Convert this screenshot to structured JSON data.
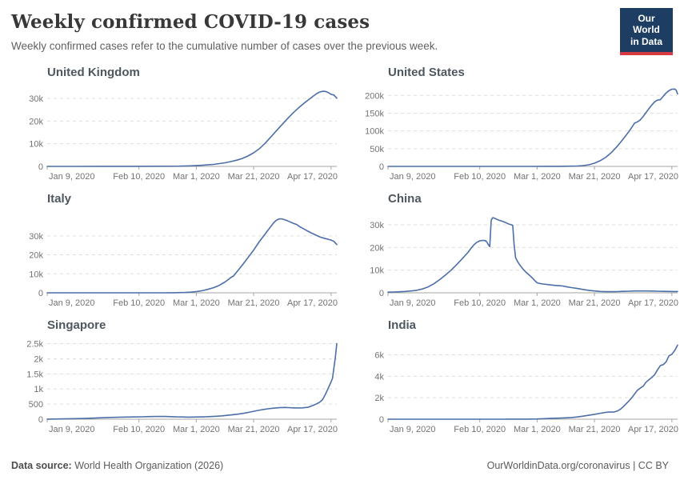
{
  "header": {
    "title": "Weekly confirmed COVID-19 cases",
    "subtitle": "Weekly confirmed cases refer to the cumulative number of cases over the previous week.",
    "logo": {
      "line1": "Our World",
      "line2": "in Data"
    }
  },
  "footer": {
    "source_label": "Data source:",
    "source_text": " World Health Organization (2026)",
    "credit": "OurWorldinData.org/coronavirus | CC BY"
  },
  "colors": {
    "line": "#4c6ea9",
    "grid": "#dddddd",
    "axis": "#a5a5a5",
    "tick_text": "#737373",
    "logo_navy": "#1d3d63",
    "logo_red": "#d7373f"
  },
  "chart_data": [
    {
      "type": "line",
      "title": "United Kingdom",
      "x_domain": [
        0,
        101
      ],
      "x_ticks": [
        {
          "day": 0,
          "label": "Jan 9, 2020"
        },
        {
          "day": 32,
          "label": "Feb 10, 2020"
        },
        {
          "day": 52,
          "label": "Mar 1, 2020"
        },
        {
          "day": 72,
          "label": "Mar 21, 2020"
        },
        {
          "day": 99,
          "label": "Apr 17, 2020"
        }
      ],
      "y_max": 36000,
      "y_ticks": [
        {
          "v": 0,
          "label": "0"
        },
        {
          "v": 10000,
          "label": "10k"
        },
        {
          "v": 20000,
          "label": "20k"
        },
        {
          "v": 30000,
          "label": "30k"
        }
      ],
      "points": [
        [
          0,
          10
        ],
        [
          10,
          15
        ],
        [
          20,
          20
        ],
        [
          30,
          30
        ],
        [
          40,
          60
        ],
        [
          46,
          120
        ],
        [
          50,
          250
        ],
        [
          54,
          500
        ],
        [
          58,
          900
        ],
        [
          62,
          1600
        ],
        [
          64,
          2100
        ],
        [
          66,
          2700
        ],
        [
          68,
          3500
        ],
        [
          70,
          4600
        ],
        [
          72,
          6000
        ],
        [
          74,
          7800
        ],
        [
          76,
          10200
        ],
        [
          78,
          13000
        ],
        [
          80,
          15800
        ],
        [
          82,
          18600
        ],
        [
          84,
          21300
        ],
        [
          86,
          23900
        ],
        [
          88,
          26200
        ],
        [
          90,
          28300
        ],
        [
          92,
          30200
        ],
        [
          93,
          31200
        ],
        [
          94,
          32100
        ],
        [
          95,
          32800
        ],
        [
          96,
          33100
        ],
        [
          97,
          33100
        ],
        [
          98,
          32600
        ],
        [
          99,
          31800
        ],
        [
          100,
          31500
        ],
        [
          101,
          30100
        ]
      ]
    },
    {
      "type": "line",
      "title": "United States",
      "x_domain": [
        0,
        101
      ],
      "x_ticks": [
        {
          "day": 0,
          "label": "Jan 9, 2020"
        },
        {
          "day": 32,
          "label": "Feb 10, 2020"
        },
        {
          "day": 52,
          "label": "Mar 1, 2020"
        },
        {
          "day": 72,
          "label": "Mar 21, 2020"
        },
        {
          "day": 99,
          "label": "Apr 17, 2020"
        }
      ],
      "y_max": 230000,
      "y_ticks": [
        {
          "v": 0,
          "label": "0"
        },
        {
          "v": 50000,
          "label": "50k"
        },
        {
          "v": 100000,
          "label": "100k"
        },
        {
          "v": 150000,
          "label": "150k"
        },
        {
          "v": 200000,
          "label": "200k"
        }
      ],
      "points": [
        [
          0,
          5
        ],
        [
          20,
          10
        ],
        [
          40,
          30
        ],
        [
          50,
          60
        ],
        [
          56,
          120
        ],
        [
          60,
          250
        ],
        [
          64,
          600
        ],
        [
          66,
          1100
        ],
        [
          68,
          2200
        ],
        [
          70,
          4500
        ],
        [
          72,
          9000
        ],
        [
          74,
          16000
        ],
        [
          76,
          26000
        ],
        [
          78,
          40000
        ],
        [
          80,
          57000
        ],
        [
          82,
          77000
        ],
        [
          84,
          98000
        ],
        [
          85,
          110000
        ],
        [
          86,
          122000
        ],
        [
          87,
          125500
        ],
        [
          88,
          131000
        ],
        [
          89,
          141000
        ],
        [
          90,
          152000
        ],
        [
          91,
          163000
        ],
        [
          92,
          173000
        ],
        [
          93,
          182000
        ],
        [
          94,
          187000
        ],
        [
          95,
          188000
        ],
        [
          96,
          198000
        ],
        [
          97,
          207000
        ],
        [
          98,
          213500
        ],
        [
          99,
          217500
        ],
        [
          100,
          218000
        ],
        [
          100.5,
          215000
        ],
        [
          101,
          204000
        ]
      ]
    },
    {
      "type": "line",
      "title": "Italy",
      "x_domain": [
        0,
        101
      ],
      "x_ticks": [
        {
          "day": 0,
          "label": "Jan 9, 2020"
        },
        {
          "day": 32,
          "label": "Feb 10, 2020"
        },
        {
          "day": 52,
          "label": "Mar 1, 2020"
        },
        {
          "day": 72,
          "label": "Mar 21, 2020"
        },
        {
          "day": 99,
          "label": "Apr 17, 2020"
        }
      ],
      "y_max": 43000,
      "y_ticks": [
        {
          "v": 0,
          "label": "0"
        },
        {
          "v": 10000,
          "label": "10k"
        },
        {
          "v": 20000,
          "label": "20k"
        },
        {
          "v": 30000,
          "label": "30k"
        }
      ],
      "points": [
        [
          0,
          0
        ],
        [
          20,
          3
        ],
        [
          30,
          5
        ],
        [
          40,
          20
        ],
        [
          44,
          60
        ],
        [
          48,
          180
        ],
        [
          50,
          350
        ],
        [
          52,
          650
        ],
        [
          54,
          1100
        ],
        [
          56,
          1800
        ],
        [
          58,
          2700
        ],
        [
          60,
          3900
        ],
        [
          62,
          5700
        ],
        [
          63,
          6800
        ],
        [
          64,
          8000
        ],
        [
          65,
          8900
        ],
        [
          66,
          10800
        ],
        [
          68,
          14500
        ],
        [
          70,
          18500
        ],
        [
          72,
          22500
        ],
        [
          74,
          27000
        ],
        [
          76,
          31000
        ],
        [
          78,
          35000
        ],
        [
          79,
          36900
        ],
        [
          80,
          38300
        ],
        [
          81,
          39000
        ],
        [
          82,
          38900
        ],
        [
          83,
          38400
        ],
        [
          84,
          37800
        ],
        [
          86,
          36500
        ],
        [
          87,
          36000
        ],
        [
          88,
          34900
        ],
        [
          90,
          33200
        ],
        [
          92,
          31600
        ],
        [
          94,
          30200
        ],
        [
          95,
          29500
        ],
        [
          96,
          29000
        ],
        [
          97,
          28600
        ],
        [
          98,
          28200
        ],
        [
          99,
          27800
        ],
        [
          100,
          27100
        ],
        [
          101,
          25400
        ]
      ]
    },
    {
      "type": "line",
      "title": "China",
      "x_domain": [
        0,
        101
      ],
      "x_ticks": [
        {
          "day": 0,
          "label": "Jan 9, 2020"
        },
        {
          "day": 32,
          "label": "Feb 10, 2020"
        },
        {
          "day": 52,
          "label": "Mar 1, 2020"
        },
        {
          "day": 72,
          "label": "Mar 21, 2020"
        },
        {
          "day": 99,
          "label": "Apr 17, 2020"
        }
      ],
      "y_max": 36000,
      "y_ticks": [
        {
          "v": 0,
          "label": "0"
        },
        {
          "v": 10000,
          "label": "10k"
        },
        {
          "v": 20000,
          "label": "20k"
        },
        {
          "v": 30000,
          "label": "30k"
        }
      ],
      "points": [
        [
          0,
          300
        ],
        [
          2,
          350
        ],
        [
          4,
          450
        ],
        [
          6,
          600
        ],
        [
          8,
          800
        ],
        [
          10,
          1100
        ],
        [
          12,
          1700
        ],
        [
          14,
          2600
        ],
        [
          16,
          4000
        ],
        [
          18,
          5800
        ],
        [
          20,
          7800
        ],
        [
          22,
          10000
        ],
        [
          24,
          12500
        ],
        [
          26,
          15200
        ],
        [
          28,
          18000
        ],
        [
          29,
          19700
        ],
        [
          30,
          21200
        ],
        [
          31,
          22300
        ],
        [
          32,
          22900
        ],
        [
          33,
          23100
        ],
        [
          34,
          23000
        ],
        [
          34.5,
          22300
        ],
        [
          35,
          21200
        ],
        [
          35.5,
          20400
        ],
        [
          36,
          32000
        ],
        [
          36.5,
          33100
        ],
        [
          37,
          33000
        ],
        [
          38,
          32400
        ],
        [
          39,
          31900
        ],
        [
          40,
          31500
        ],
        [
          41,
          31000
        ],
        [
          42,
          30400
        ],
        [
          43,
          30000
        ],
        [
          43.5,
          29800
        ],
        [
          44,
          21000
        ],
        [
          44.5,
          15500
        ],
        [
          45,
          14200
        ],
        [
          46,
          12200
        ],
        [
          47,
          10600
        ],
        [
          48,
          9200
        ],
        [
          49,
          8100
        ],
        [
          50,
          7000
        ],
        [
          51,
          5600
        ],
        [
          52,
          4400
        ],
        [
          53,
          4100
        ],
        [
          54,
          3900
        ],
        [
          56,
          3600
        ],
        [
          58,
          3300
        ],
        [
          60,
          3100
        ],
        [
          61,
          3000
        ],
        [
          62,
          2700
        ],
        [
          64,
          2300
        ],
        [
          66,
          1900
        ],
        [
          68,
          1500
        ],
        [
          70,
          1100
        ],
        [
          72,
          800
        ],
        [
          74,
          600
        ],
        [
          76,
          500
        ],
        [
          78,
          480
        ],
        [
          80,
          520
        ],
        [
          82,
          620
        ],
        [
          84,
          720
        ],
        [
          86,
          800
        ],
        [
          88,
          820
        ],
        [
          90,
          800
        ],
        [
          92,
          760
        ],
        [
          94,
          700
        ],
        [
          96,
          640
        ],
        [
          98,
          600
        ],
        [
          100,
          570
        ],
        [
          101,
          550
        ]
      ]
    },
    {
      "type": "line",
      "title": "Singapore",
      "x_domain": [
        0,
        101
      ],
      "x_ticks": [
        {
          "day": 0,
          "label": "Jan 9, 2020"
        },
        {
          "day": 32,
          "label": "Feb 10, 2020"
        },
        {
          "day": 52,
          "label": "Mar 1, 2020"
        },
        {
          "day": 72,
          "label": "Mar 21, 2020"
        },
        {
          "day": 99,
          "label": "Apr 17, 2020"
        }
      ],
      "y_max": 2700,
      "y_ticks": [
        {
          "v": 0,
          "label": "0"
        },
        {
          "v": 500,
          "label": "500"
        },
        {
          "v": 1000,
          "label": "1k"
        },
        {
          "v": 1500,
          "label": "1.5k"
        },
        {
          "v": 2000,
          "label": "2k"
        },
        {
          "v": 2500,
          "label": "2.5k"
        }
      ],
      "points": [
        [
          0,
          2
        ],
        [
          6,
          10
        ],
        [
          10,
          18
        ],
        [
          14,
          30
        ],
        [
          18,
          45
        ],
        [
          22,
          58
        ],
        [
          26,
          68
        ],
        [
          30,
          75
        ],
        [
          33,
          80
        ],
        [
          36,
          88
        ],
        [
          39,
          93
        ],
        [
          41,
          90
        ],
        [
          43,
          84
        ],
        [
          45,
          78
        ],
        [
          47,
          73
        ],
        [
          49,
          70
        ],
        [
          51,
          71
        ],
        [
          53,
          75
        ],
        [
          55,
          80
        ],
        [
          57,
          88
        ],
        [
          59,
          98
        ],
        [
          61,
          112
        ],
        [
          63,
          130
        ],
        [
          65,
          150
        ],
        [
          67,
          175
        ],
        [
          69,
          205
        ],
        [
          71,
          240
        ],
        [
          73,
          280
        ],
        [
          75,
          315
        ],
        [
          77,
          345
        ],
        [
          79,
          365
        ],
        [
          81,
          380
        ],
        [
          83,
          390
        ],
        [
          84,
          385
        ],
        [
          85,
          378
        ],
        [
          87,
          374
        ],
        [
          89,
          376
        ],
        [
          91,
          395
        ],
        [
          92,
          430
        ],
        [
          93,
          465
        ],
        [
          94,
          510
        ],
        [
          95,
          560
        ],
        [
          96,
          640
        ],
        [
          97,
          820
        ],
        [
          98,
          1020
        ],
        [
          99,
          1230
        ],
        [
          99.5,
          1350
        ],
        [
          100,
          1700
        ],
        [
          100.5,
          2050
        ],
        [
          101,
          2500
        ]
      ]
    },
    {
      "type": "line",
      "title": "India",
      "x_domain": [
        0,
        101
      ],
      "x_ticks": [
        {
          "day": 0,
          "label": "Jan 9, 2020"
        },
        {
          "day": 32,
          "label": "Feb 10, 2020"
        },
        {
          "day": 52,
          "label": "Mar 1, 2020"
        },
        {
          "day": 72,
          "label": "Mar 21, 2020"
        },
        {
          "day": 99,
          "label": "Apr 17, 2020"
        }
      ],
      "y_max": 7600,
      "y_ticks": [
        {
          "v": 0,
          "label": "0"
        },
        {
          "v": 2000,
          "label": "2k"
        },
        {
          "v": 4000,
          "label": "4k"
        },
        {
          "v": 6000,
          "label": "6k"
        }
      ],
      "points": [
        [
          0,
          0
        ],
        [
          20,
          1
        ],
        [
          40,
          3
        ],
        [
          48,
          5
        ],
        [
          52,
          25
        ],
        [
          54,
          45
        ],
        [
          56,
          70
        ],
        [
          58,
          90
        ],
        [
          60,
          105
        ],
        [
          62,
          125
        ],
        [
          64,
          155
        ],
        [
          66,
          205
        ],
        [
          68,
          280
        ],
        [
          70,
          365
        ],
        [
          72,
          455
        ],
        [
          74,
          555
        ],
        [
          76,
          640
        ],
        [
          77,
          665
        ],
        [
          78,
          660
        ],
        [
          79,
          680
        ],
        [
          80,
          770
        ],
        [
          81,
          920
        ],
        [
          82,
          1150
        ],
        [
          83,
          1420
        ],
        [
          84,
          1700
        ],
        [
          85,
          2000
        ],
        [
          86,
          2350
        ],
        [
          87,
          2700
        ],
        [
          88,
          2900
        ],
        [
          89,
          3080
        ],
        [
          90,
          3450
        ],
        [
          91,
          3680
        ],
        [
          92,
          3880
        ],
        [
          93,
          4150
        ],
        [
          94,
          4600
        ],
        [
          95,
          5000
        ],
        [
          96,
          5080
        ],
        [
          97,
          5350
        ],
        [
          98,
          5900
        ],
        [
          99,
          6050
        ],
        [
          100,
          6400
        ],
        [
          101,
          6900
        ]
      ]
    }
  ]
}
